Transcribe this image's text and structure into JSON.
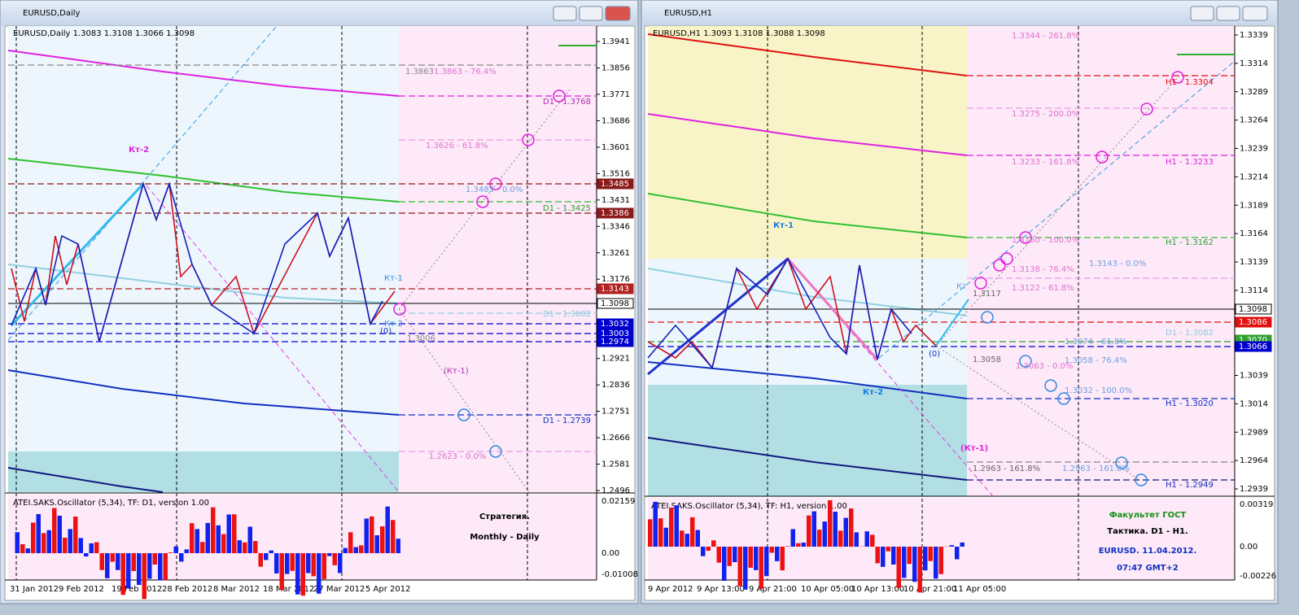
{
  "windows": [
    {
      "title": "EURUSD,Daily",
      "header": "EURUSD,Daily  1.3083 1.3108 1.3066 1.3098",
      "price_ticks": [
        1.3941,
        1.3856,
        1.3771,
        1.3686,
        1.3601,
        1.3516,
        1.3431,
        1.3346,
        1.3261,
        1.3176,
        1.2921,
        1.2836,
        1.2751,
        1.2666,
        1.2581,
        1.2496
      ],
      "price_tags": [
        "1.3485",
        "1.3386",
        "1.3143",
        "1.3098",
        "1.3032",
        "1.3003",
        "1.2974"
      ],
      "levels": [
        "1.3863",
        "1.3863 - 76.4%",
        "D1 - 1.3768",
        "1.3626 - 61.8%",
        "1.3485 - 0.0%",
        "D1 - 1.3425",
        "D1 - 1.3082",
        "1.3006",
        "D1 - 1.2739",
        "1.2623 - 0.0%"
      ],
      "annotations": [
        "Кт-2",
        "Кт-1",
        "Кт-2",
        "(0)",
        "(Кт-1)"
      ],
      "oscillator": {
        "label": "ATEI.SAKS.Oscillator (5,34), TF: D1, version 1.00",
        "ticks": [
          "0.02159",
          "0.00",
          "-0.01008"
        ]
      },
      "captions": [
        "Стратегия.",
        "Monthly - Daily"
      ],
      "dates": [
        "31 Jan 2012",
        "9 Feb 2012",
        "19 Feb 2012",
        "28 Feb 2012",
        "8 Mar 2012",
        "18 Mar 2012",
        "27 Mar 2012",
        "5 Apr 2012"
      ]
    },
    {
      "title": "EURUSD,H1",
      "header": "EURUSD,H1  1.3093 1.3108 1.3088 1.3098",
      "price_ticks": [
        1.3339,
        1.3314,
        1.3289,
        1.3264,
        1.3239,
        1.3214,
        1.3189,
        1.3164,
        1.3139,
        1.3114,
        1.3039,
        1.3014,
        1.2989,
        1.2964,
        1.2939
      ],
      "price_tags": [
        "1.3098",
        "1.3086",
        "1.3070",
        "1.3066"
      ],
      "levels": [
        "1.3344 - 261.8%",
        "H1 - 1.3304",
        "1.3275 - 200.0%",
        "1.3233 - 161.8%",
        "H1 - 1.3233",
        "1.3160 - 100.0%",
        "H1 - 1.3162",
        "1.3143 - 0.0%",
        "1.3138 - 76.4%",
        "1.3122 - 61.8%",
        "1.3117",
        "D1 - 1.3082",
        "1.3074 - 61.8%",
        "1.3058",
        "1.3063 - 0.0%",
        "1.3058 - 76.4%",
        "1.3032 - 100.0%",
        "H1 - 1.3020",
        "1.2963 - 161.8%",
        "1.2963 - 161.8%",
        "H1 - 1.2949"
      ],
      "annotations": [
        "Кт-1",
        "Кт-2",
        "Кт",
        "(0)",
        "(Кт-1)"
      ],
      "oscillator": {
        "label": "ATEI.SAKS.Oscillator (5,34), TF: H1, version 1.00",
        "ticks": [
          "0.00319",
          "0.00",
          "-0.00226"
        ]
      },
      "captions": [
        "Факультет ГОСТ",
        "Тактика. D1 - H1.",
        "EURUSD. 11.04.2012.",
        "07:47  GMT+2"
      ],
      "dates": [
        "9 Apr 2012",
        "9 Apr 13:00",
        "9 Apr 21:00",
        "10 Apr 05:00",
        "10 Apr 13:00",
        "10 Apr 21:00",
        "11 Apr 05:00"
      ]
    }
  ]
}
